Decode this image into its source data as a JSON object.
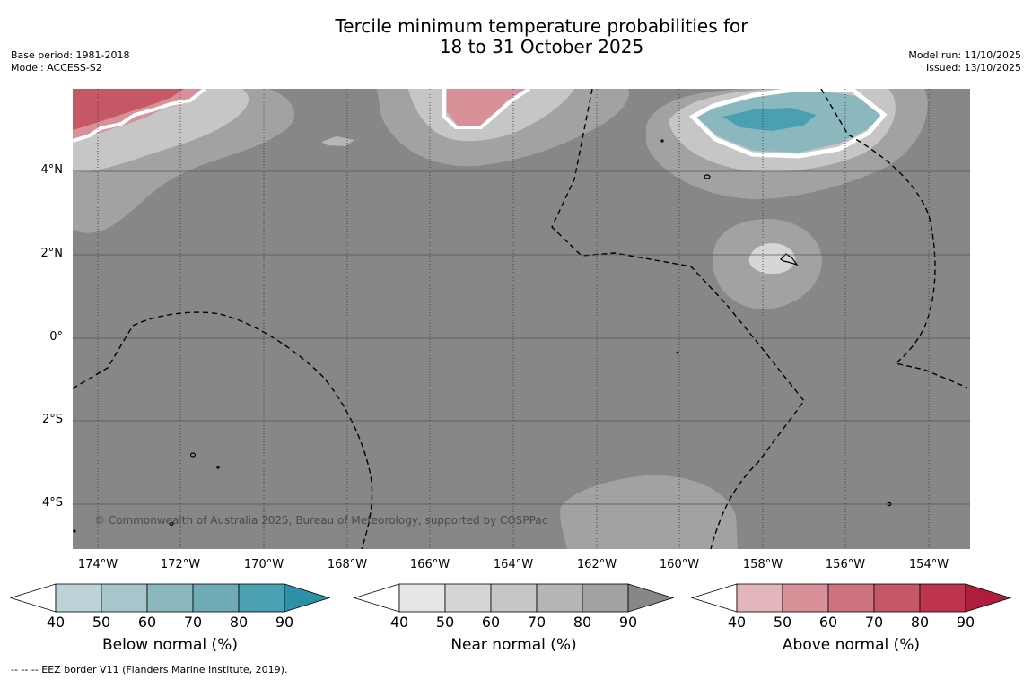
{
  "title_line1": "Tercile minimum temperature probabilities for",
  "title_line2": "18 to 31 October 2025",
  "base_period": "Base period: 1981-2018",
  "model": "Model: ACCESS-S2",
  "model_run": "Model run: 11/10/2025",
  "issued": "Issued: 13/10/2025",
  "map": {
    "lat_labels": [
      "4°N",
      "2°N",
      "0°",
      "2°S",
      "4°S"
    ],
    "lon_labels": [
      "174°W",
      "172°W",
      "170°W",
      "168°W",
      "166°W",
      "164°W",
      "162°W",
      "160°W",
      "158°W",
      "156°W",
      "154°W"
    ],
    "background_color": "#878787",
    "copyright": "© Commonwealth of Australia 2025, Bureau of Meteorology, supported by COSPPac"
  },
  "colorbars": [
    {
      "label": "Below normal (%)",
      "ticks": [
        "40",
        "50",
        "60",
        "70",
        "80",
        "90"
      ],
      "colors": [
        "#ffffff",
        "#bdd3da",
        "#a6c6cb",
        "#8bb8bf",
        "#6eabb5",
        "#4aa0b1",
        "#2c90a8"
      ]
    },
    {
      "label": "Near normal (%)",
      "ticks": [
        "40",
        "50",
        "60",
        "70",
        "80",
        "90"
      ],
      "colors": [
        "#ffffff",
        "#e6e6e6",
        "#d6d6d6",
        "#c6c6c6",
        "#b6b6b6",
        "#a2a2a2",
        "#878787"
      ]
    },
    {
      "label": "Above normal (%)",
      "ticks": [
        "40",
        "50",
        "60",
        "70",
        "80",
        "90"
      ],
      "colors": [
        "#ffffff",
        "#e2b6bb",
        "#d89099",
        "#ce727d",
        "#c55767",
        "#bd344c",
        "#b01c3c"
      ]
    }
  ],
  "footnote": "-- -- -- EEZ border V11 (Flanders Marine Institute, 2019)."
}
